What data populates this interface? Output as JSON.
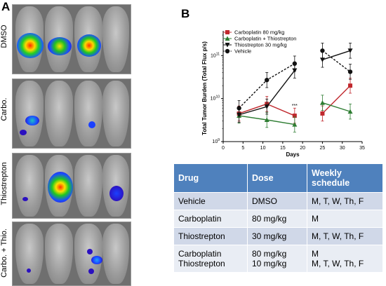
{
  "panel_a": {
    "letter": "A",
    "rows": [
      {
        "label": "DMSO"
      },
      {
        "label": "Carbo."
      },
      {
        "label": "Thiostrepton"
      },
      {
        "label": "Carbo. + Thio."
      }
    ]
  },
  "panel_b": {
    "letter": "B"
  },
  "chart_data": {
    "type": "line",
    "xlabel": "Days",
    "ylabel": "Total Tumor Burden (Total Flux p/s)",
    "xlim": [
      0,
      35
    ],
    "ylim": [
      1000000000.0,
      300000000000.0
    ],
    "yscale": "log",
    "x_ticks": [
      0,
      5,
      10,
      15,
      20,
      25,
      30,
      35
    ],
    "y_ticks": [
      "10^9",
      "10^10",
      "10^11"
    ],
    "legend_position": "top-left",
    "annotation": "***",
    "series": [
      {
        "name": "Carboplatin 80 mg/kg",
        "color": "#c0282d",
        "marker": "square",
        "x": [
          4,
          11,
          18,
          25,
          32
        ],
        "y": [
          4500000000.0,
          7500000000.0,
          4000000000.0,
          4500000000.0,
          20000000000.0
        ]
      },
      {
        "name": "Carboplatin + Thiostrepton",
        "color": "#2e7d32",
        "marker": "triangle-up",
        "x": [
          4,
          11,
          18,
          25,
          32
        ],
        "y": [
          4000000000.0,
          3200000000.0,
          2500000000.0,
          8000000000.0,
          5000000000.0
        ]
      },
      {
        "name": "Thiostrepton 30 mg/kg",
        "color": "#111111",
        "marker": "triangle-down",
        "x": [
          4,
          11,
          18,
          25,
          32
        ],
        "y": [
          4200000000.0,
          6500000000.0,
          45000000000.0,
          80000000000.0,
          130000000000.0
        ]
      },
      {
        "name": "Vehicle",
        "color": "#111111",
        "marker": "circle",
        "dashed": true,
        "x": [
          4,
          11,
          18,
          25,
          32
        ],
        "y": [
          6000000000.0,
          27000000000.0,
          65000000000.0,
          130000000000.0,
          42000000000.0
        ]
      }
    ]
  },
  "table": {
    "headers": [
      "Drug",
      "Dose",
      "Weekly schedule"
    ],
    "rows": [
      {
        "drug": "Vehicle",
        "dose": "DMSO",
        "schedule": "M, T, W, Th, F"
      },
      {
        "drug": "Carboplatin",
        "dose": "80 mg/kg",
        "schedule": "M"
      },
      {
        "drug": "Thiostrepton",
        "dose": "30 mg/kg",
        "schedule": "M, T, W, Th, F"
      },
      {
        "drug": "Carboplatin\nThiostrepton",
        "dose": "80 mg/kg\n10 mg/kg",
        "schedule": "M\nM, T, W, Th, F"
      }
    ]
  }
}
